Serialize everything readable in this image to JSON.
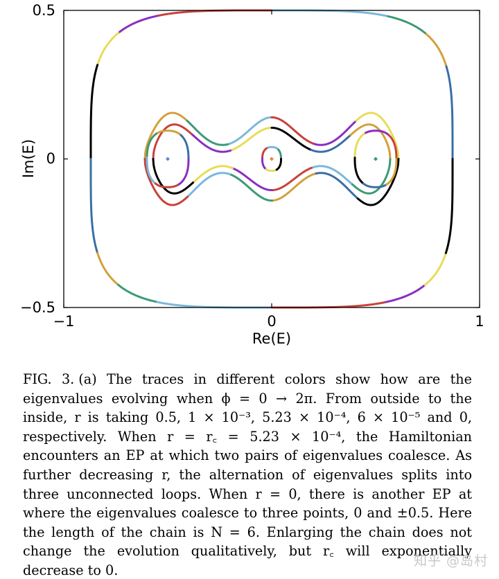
{
  "chart_data": {
    "type": "line",
    "xlabel": "Re(E)",
    "ylabel": "Im(E)",
    "xlim": [
      -1,
      1
    ],
    "ylim": [
      -0.5,
      0.5
    ],
    "xticks": [
      "−1",
      "0",
      "1"
    ],
    "yticks": [
      "0.5",
      "0",
      "−0.5"
    ],
    "grid": false,
    "segment_colors": [
      "#000000",
      "#3a6ea5",
      "#d4a03a",
      "#3c9a74",
      "#7ab8dd",
      "#c8413a",
      "#8a2ec0",
      "#e8dc5a"
    ],
    "curves": [
      {
        "r": "0.5",
        "shape": "outer-loop",
        "center_x": 0,
        "center_y": 0,
        "half_width_x": 0.87,
        "half_height_y": 0.5
      },
      {
        "r": "1 × 10^-3",
        "shape": "figure-of-three",
        "center_x": 0,
        "center_y": 0,
        "half_width_x": 0.61,
        "half_height_y": 0.17
      },
      {
        "r": "5.23 × 10^-4",
        "shape": "figure-of-three-with-EP",
        "center_x": 0,
        "center_y": 0,
        "half_width_x": 0.57,
        "half_height_y": 0.14
      },
      {
        "r": "6 × 10^-5",
        "shape": "three-small-loops",
        "loops": [
          {
            "center_x": -0.5,
            "center_y": 0,
            "half_width_x": 0.1,
            "half_height_y": 0.095
          },
          {
            "center_x": 0,
            "center_y": 0,
            "half_width_x": 0.045,
            "half_height_y": 0.04
          },
          {
            "center_x": 0.5,
            "center_y": 0,
            "half_width_x": 0.1,
            "half_height_y": 0.095
          }
        ]
      },
      {
        "r": "0",
        "shape": "points",
        "points": [
          {
            "x": -0.5,
            "y": 0,
            "color": "#5b8ecf"
          },
          {
            "x": 0,
            "y": 0,
            "color": "#e08a3a"
          },
          {
            "x": 0.5,
            "y": 0,
            "color": "#3c9a74"
          }
        ]
      }
    ]
  },
  "caption": {
    "label": "FIG. 3.",
    "text": "(a) The traces in different colors show how are the eigenvalues evolving when ϕ = 0 → 2π. From outside to the inside, r is taking 0.5, 1 × 10⁻³, 5.23 × 10⁻⁴, 6 × 10⁻⁵ and 0, respectively. When r = r꜀ = 5.23 × 10⁻⁴, the Hamiltonian encounters an EP at which two pairs of eigenvalues coalesce. As further decreasing r, the alternation of eigenvalues splits into three unconnected loops. When r = 0, there is another EP at where the eigenvalues coalesce to three points, 0 and ±0.5. Here the length of the chain is N = 6. Enlarging the chain does not change the evolution qualitatively, but r꜀ will exponentially decrease to 0."
  },
  "watermark": "知乎 @岛村"
}
